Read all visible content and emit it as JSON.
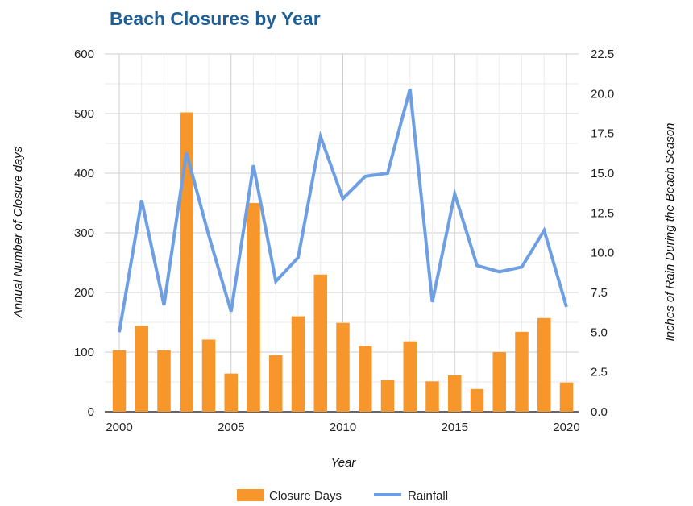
{
  "chart_data": {
    "type": "bar",
    "title": "Beach Closures by Year",
    "xlabel": "Year",
    "ylabel": "Annual Number of Closure days",
    "y2label": "Inches of Rain During the Beach Season",
    "x": [
      2000,
      2001,
      2002,
      2003,
      2004,
      2005,
      2006,
      2007,
      2008,
      2009,
      2010,
      2011,
      2012,
      2013,
      2014,
      2015,
      2016,
      2017,
      2018,
      2019,
      2020
    ],
    "xticks": [
      "2000",
      "2005",
      "2010",
      "2015",
      "2020"
    ],
    "ylim": [
      0,
      600
    ],
    "yticks": [
      "0",
      "100",
      "200",
      "300",
      "400",
      "500",
      "600"
    ],
    "y2lim": [
      0,
      22.5
    ],
    "y2ticks": [
      "0.0",
      "2.5",
      "5.0",
      "7.5",
      "10.0",
      "12.5",
      "15.0",
      "17.5",
      "20.0",
      "22.5"
    ],
    "grid": true,
    "legend_position": "bottom",
    "series": [
      {
        "name": "Closure Days",
        "type": "bar",
        "axis": "left",
        "color": "#f7962b",
        "values": [
          103,
          144,
          103,
          502,
          121,
          64,
          350,
          95,
          160,
          230,
          149,
          110,
          53,
          118,
          51,
          61,
          38,
          100,
          134,
          157,
          49
        ]
      },
      {
        "name": "Rainfall",
        "type": "line",
        "axis": "right",
        "color": "#6e9fe3",
        "values": [
          5.0,
          13.3,
          6.7,
          16.3,
          11.1,
          6.3,
          15.5,
          8.2,
          9.7,
          17.3,
          13.4,
          14.8,
          15.0,
          20.3,
          6.9,
          13.7,
          9.2,
          8.8,
          9.1,
          11.4,
          6.6
        ]
      }
    ]
  }
}
